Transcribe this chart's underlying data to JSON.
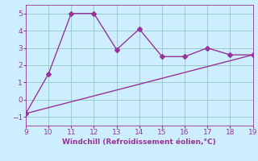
{
  "x": [
    9,
    10,
    11,
    12,
    13,
    14,
    15,
    16,
    17,
    18,
    19
  ],
  "y_line": [
    -0.8,
    1.5,
    5.0,
    5.0,
    2.9,
    4.1,
    2.5,
    2.5,
    3.0,
    2.6,
    2.6
  ],
  "trend_x": [
    9,
    19
  ],
  "trend_y": [
    -0.8,
    2.6
  ],
  "line_color": "#993399",
  "bg_color": "#cceeff",
  "grid_color": "#99cccc",
  "xlabel": "Windchill (Refroidissement éolien,°C)",
  "xlabel_color": "#993399",
  "xlim": [
    9,
    19
  ],
  "ylim": [
    -1.5,
    5.5
  ],
  "xticks": [
    9,
    10,
    11,
    12,
    13,
    14,
    15,
    16,
    17,
    18,
    19
  ],
  "yticks": [
    -1,
    0,
    1,
    2,
    3,
    4,
    5
  ],
  "tick_color": "#993399",
  "tick_fontsize": 6.5,
  "marker": "D",
  "markersize": 3,
  "linewidth": 1.0
}
